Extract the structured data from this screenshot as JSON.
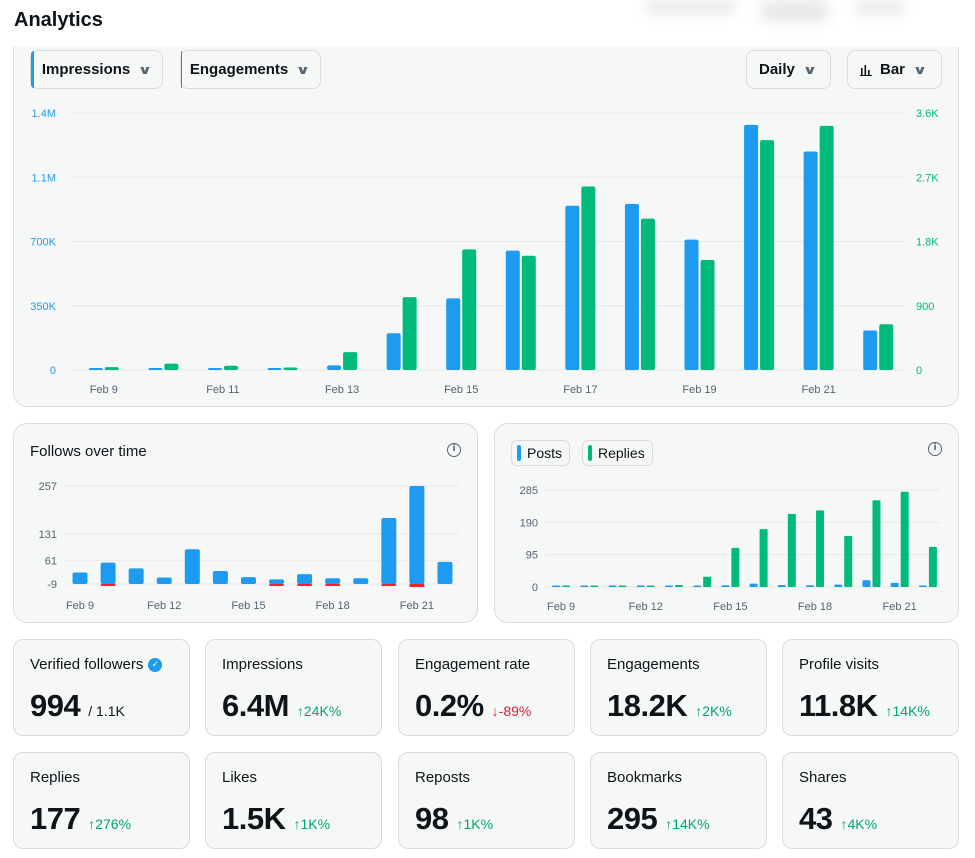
{
  "page": {
    "title": "Analytics"
  },
  "colors": {
    "blue": "#1d9bf0",
    "green": "#00ba7c",
    "red": "#f4212e",
    "up": "#00a66a",
    "down": "#d9203a"
  },
  "main_chart": {
    "controls": {
      "metric_a": "Impressions",
      "metric_b": "Engagements",
      "period": "Daily",
      "chart_type": "Bar"
    }
  },
  "follows": {
    "title": "Follows over time"
  },
  "posts_chart": {
    "legend_posts": "Posts",
    "legend_replies": "Replies"
  },
  "stats": [
    {
      "label": "Verified followers",
      "value": "994",
      "sub": "/ 1.1K",
      "verified_icon": true
    },
    {
      "label": "Impressions",
      "value": "6.4M",
      "delta": "24K%",
      "dir": "up"
    },
    {
      "label": "Engagement rate",
      "value": "0.2%",
      "delta": "-89%",
      "dir": "down"
    },
    {
      "label": "Engagements",
      "value": "18.2K",
      "delta": "2K%",
      "dir": "up"
    },
    {
      "label": "Profile visits",
      "value": "11.8K",
      "delta": "14K%",
      "dir": "up"
    },
    {
      "label": "Replies",
      "value": "177",
      "delta": "276%",
      "dir": "up"
    },
    {
      "label": "Likes",
      "value": "1.5K",
      "delta": "1K%",
      "dir": "up"
    },
    {
      "label": "Reposts",
      "value": "98",
      "delta": "1K%",
      "dir": "up"
    },
    {
      "label": "Bookmarks",
      "value": "295",
      "delta": "14K%",
      "dir": "up"
    },
    {
      "label": "Shares",
      "value": "43",
      "delta": "4K%",
      "dir": "up"
    }
  ],
  "chart_data": [
    {
      "id": "impressions-engagements",
      "type": "bar",
      "categories": [
        "Feb 9",
        "Feb 10",
        "Feb 11",
        "Feb 12",
        "Feb 13",
        "Feb 14",
        "Feb 15",
        "Feb 16",
        "Feb 17",
        "Feb 18",
        "Feb 19",
        "Feb 20",
        "Feb 21",
        "Feb 22"
      ],
      "tick_labels": [
        "Feb 9",
        "Feb 11",
        "Feb 13",
        "Feb 15",
        "Feb 17",
        "Feb 19",
        "Feb 21"
      ],
      "series": [
        {
          "name": "Impressions",
          "axis": "left",
          "values": [
            3000,
            4000,
            5000,
            6000,
            25000,
            200000,
            390000,
            650000,
            895000,
            905000,
            710000,
            1335000,
            1190000,
            215000
          ]
        },
        {
          "name": "Engagements",
          "axis": "right",
          "values": [
            40,
            90,
            60,
            35,
            250,
            1020,
            1690,
            1600,
            2570,
            2120,
            1540,
            3220,
            3420,
            640
          ]
        }
      ],
      "left_axis": {
        "ticks": [
          "0",
          "350K",
          "700K",
          "1.1M",
          "1.4M"
        ],
        "ylim": [
          0,
          1400000
        ]
      },
      "right_axis": {
        "ticks": [
          "0",
          "900",
          "1.8K",
          "2.7K",
          "3.6K"
        ],
        "ylim": [
          0,
          3600
        ]
      }
    },
    {
      "id": "follows-over-time",
      "type": "bar",
      "title": "Follows over time",
      "categories": [
        "Feb 9",
        "Feb 10",
        "Feb 11",
        "Feb 12",
        "Feb 13",
        "Feb 14",
        "Feb 15",
        "Feb 16",
        "Feb 17",
        "Feb 18",
        "Feb 19",
        "Feb 20",
        "Feb 21",
        "Feb 22"
      ],
      "tick_labels": [
        "Feb 9",
        "Feb 12",
        "Feb 15",
        "Feb 18",
        "Feb 21"
      ],
      "series": [
        {
          "name": "Follows",
          "values": [
            30,
            56,
            41,
            17,
            91,
            34,
            18,
            12,
            26,
            15,
            15,
            173,
            257,
            58
          ]
        },
        {
          "name": "Unfollows",
          "values": [
            0,
            -4,
            0,
            0,
            0,
            0,
            0,
            -2,
            -2,
            -2,
            0,
            -2,
            -9,
            0
          ]
        }
      ],
      "y_ticks": [
        "-9",
        "61",
        "131",
        "257"
      ],
      "ylim": [
        -9,
        257
      ]
    },
    {
      "id": "posts-replies",
      "type": "bar",
      "categories": [
        "Feb 9",
        "Feb 10",
        "Feb 11",
        "Feb 12",
        "Feb 13",
        "Feb 14",
        "Feb 15",
        "Feb 16",
        "Feb 17",
        "Feb 18",
        "Feb 19",
        "Feb 20",
        "Feb 21",
        "Feb 22"
      ],
      "tick_labels": [
        "Feb 9",
        "Feb 12",
        "Feb 15",
        "Feb 18",
        "Feb 21"
      ],
      "series": [
        {
          "name": "Posts",
          "values": [
            1,
            1,
            1,
            1,
            2,
            3,
            5,
            10,
            6,
            5,
            7,
            20,
            12,
            4
          ]
        },
        {
          "name": "Replies",
          "values": [
            0,
            2,
            1,
            0,
            6,
            30,
            115,
            170,
            215,
            225,
            150,
            255,
            280,
            118
          ]
        }
      ],
      "y_ticks": [
        "0",
        "95",
        "190",
        "285"
      ],
      "ylim": [
        0,
        285
      ]
    }
  ]
}
